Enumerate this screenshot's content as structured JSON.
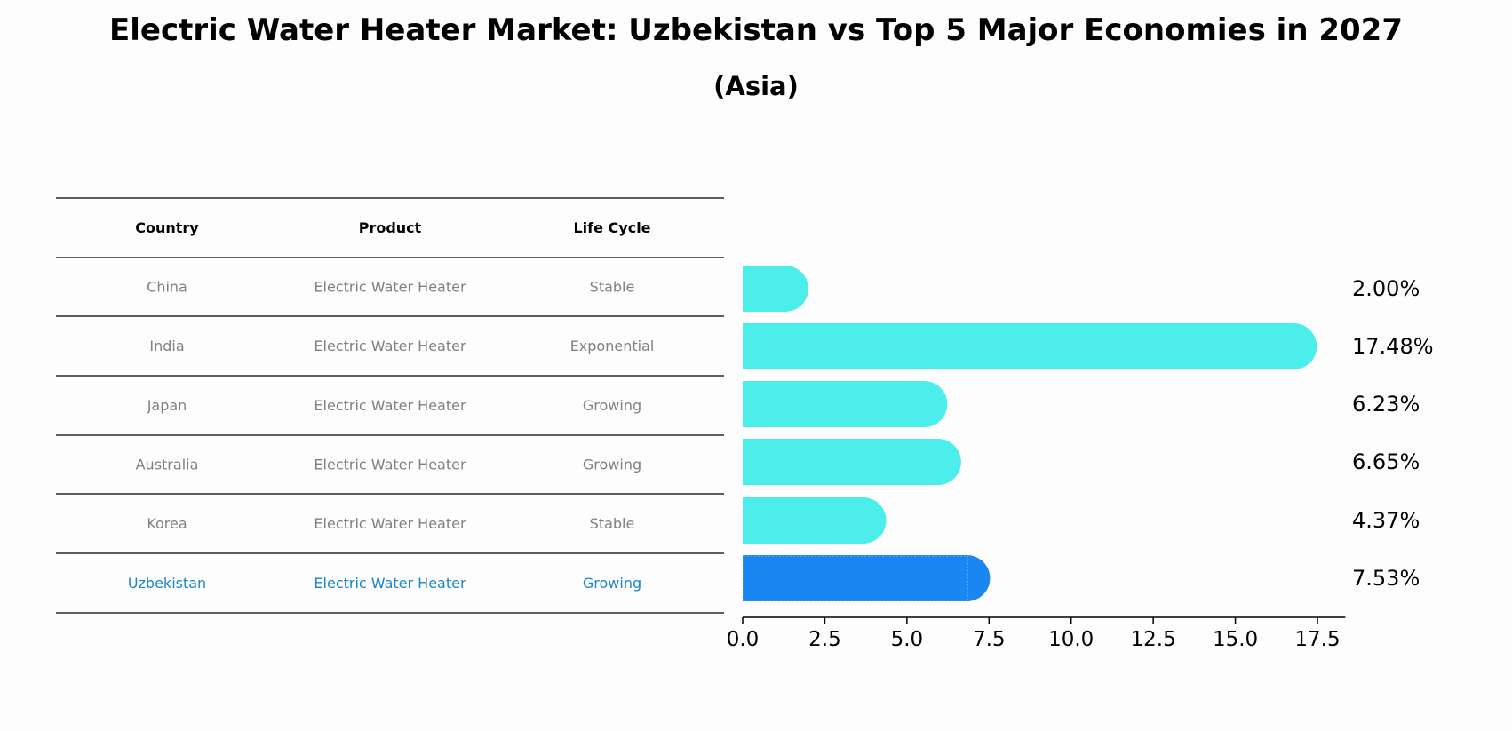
{
  "title": "Electric Water Heater Market: Uzbekistan vs Top 5 Major Economies in 2027",
  "subtitle": "(Asia)",
  "table": {
    "headers": [
      "Country",
      "Product",
      "Life Cycle"
    ],
    "rows": [
      [
        "China",
        "Electric Water Heater",
        "Stable"
      ],
      [
        "India",
        "Electric Water Heater",
        "Exponential"
      ],
      [
        "Japan",
        "Electric Water Heater",
        "Growing"
      ],
      [
        "Australia",
        "Electric Water Heater",
        "Growing"
      ],
      [
        "Korea",
        "Electric Water Heater",
        "Stable"
      ],
      [
        "Uzbekistan",
        "Electric Water Heater",
        "Growing"
      ]
    ],
    "highlight_row": 5
  },
  "colors": {
    "bar": "#4beeea",
    "highlight_bar": "#1a86f2",
    "row_text": "#808080",
    "highlight_text": "#1a86c8",
    "header_text": "#000000",
    "rule": "#000000"
  },
  "chart_data": {
    "type": "bar",
    "orientation": "horizontal",
    "categories": [
      "China",
      "India",
      "Japan",
      "Australia",
      "Korea",
      "Uzbekistan"
    ],
    "values": [
      2.0,
      17.48,
      6.23,
      6.65,
      4.37,
      7.53
    ],
    "value_labels": [
      "2.00%",
      "17.48%",
      "6.23%",
      "6.65%",
      "4.37%",
      "7.53%"
    ],
    "xticks": [
      "0.0",
      "2.5",
      "5.0",
      "7.5",
      "10.0",
      "12.5",
      "15.0",
      "17.5"
    ],
    "xtick_values": [
      0,
      2.5,
      5,
      7.5,
      10,
      12.5,
      15,
      17.5
    ],
    "xlim": [
      0,
      18.35
    ],
    "highlight_index": 5
  }
}
